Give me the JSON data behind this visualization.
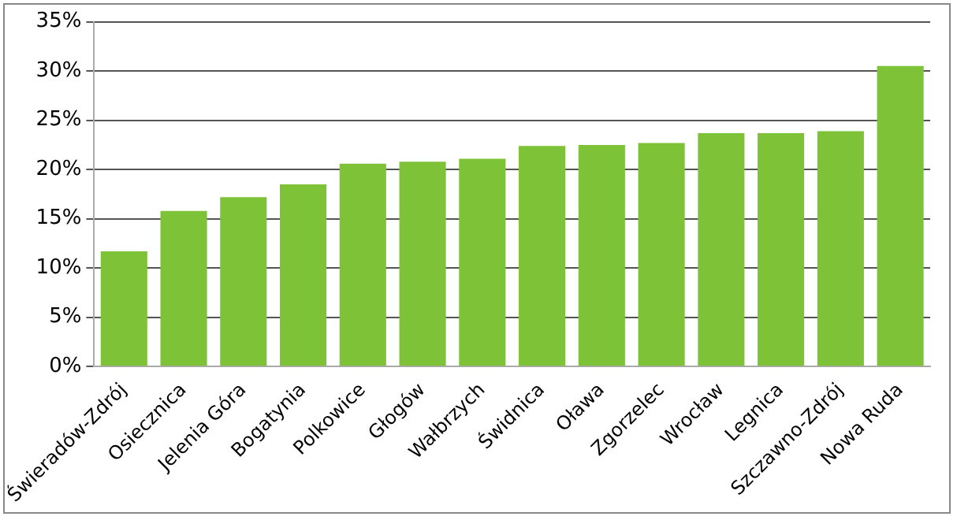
{
  "chart_data": {
    "type": "bar",
    "categories": [
      "Świeradów-Zdrój",
      "Osiecznica",
      "Jelenia Góra",
      "Bogatynia",
      "Polkowice",
      "Głogów",
      "Wałbrzych",
      "Świdnica",
      "Oława",
      "Zgorzelec",
      "Wrocław",
      "Legnica",
      "Szczawno-Zdrój",
      "Nowa Ruda"
    ],
    "values": [
      11.7,
      15.8,
      17.2,
      18.5,
      20.6,
      20.8,
      21.1,
      22.4,
      22.5,
      22.7,
      23.7,
      23.7,
      23.9,
      30.5
    ],
    "color": "#7dc237",
    "ylim": [
      0,
      35
    ],
    "yticks": [
      {
        "value": 0,
        "label": "0%"
      },
      {
        "value": 5,
        "label": "5%"
      },
      {
        "value": 10,
        "label": "10%"
      },
      {
        "value": 15,
        "label": "15%"
      },
      {
        "value": 20,
        "label": "20%"
      },
      {
        "value": 25,
        "label": "25%"
      },
      {
        "value": 30,
        "label": "30%"
      },
      {
        "value": 35,
        "label": "35%"
      }
    ],
    "grid": "y"
  }
}
